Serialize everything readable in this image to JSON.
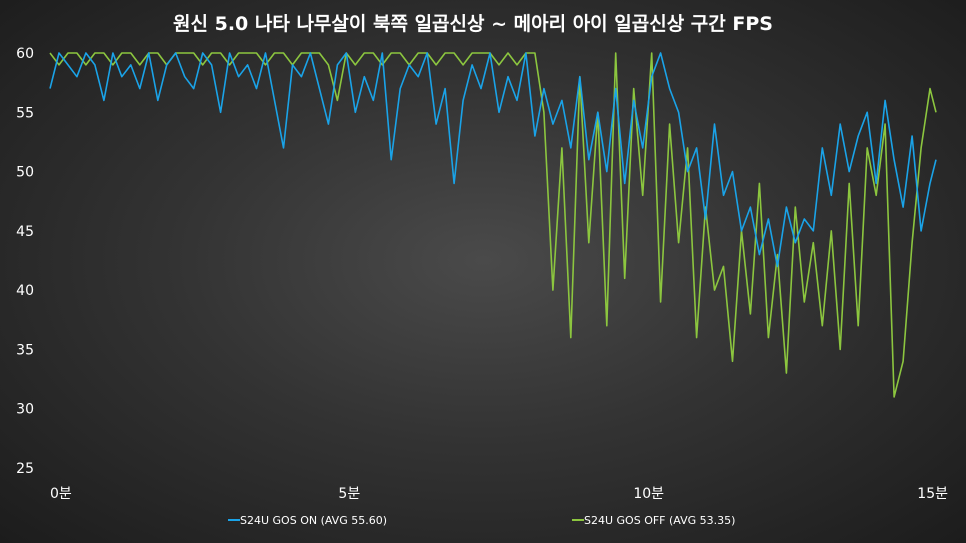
{
  "chart_data": {
    "type": "line",
    "title": "원신 5.0 나타 나무살이 북쪽 일곱신상 ~ 메아리 아이 일곱신상 구간 FPS",
    "xlabel": "",
    "ylabel": "",
    "xlim": [
      0,
      15
    ],
    "ylim": [
      25,
      60
    ],
    "x_ticks": [
      0,
      5,
      10,
      15
    ],
    "x_tick_labels": [
      "0분",
      "5분",
      "10분",
      "15분"
    ],
    "y_ticks": [
      25,
      30,
      35,
      40,
      45,
      50,
      55,
      60
    ],
    "y_tick_labels": [
      "25",
      "30",
      "35",
      "40",
      "45",
      "50",
      "55",
      "60"
    ],
    "grid": false,
    "legend_position": "bottom",
    "series": [
      {
        "name": "S24U GOS ON (AVG 55.60)",
        "color": "#1aa3e8",
        "x": [
          0,
          0.15,
          0.3,
          0.45,
          0.6,
          0.75,
          0.9,
          1.05,
          1.2,
          1.35,
          1.5,
          1.65,
          1.8,
          1.95,
          2.1,
          2.25,
          2.4,
          2.55,
          2.7,
          2.85,
          3.0,
          3.15,
          3.3,
          3.45,
          3.6,
          3.75,
          3.9,
          4.05,
          4.2,
          4.35,
          4.5,
          4.65,
          4.8,
          4.95,
          5.1,
          5.25,
          5.4,
          5.55,
          5.7,
          5.85,
          6.0,
          6.15,
          6.3,
          6.45,
          6.6,
          6.75,
          6.9,
          7.05,
          7.2,
          7.35,
          7.5,
          7.65,
          7.8,
          7.95,
          8.1,
          8.25,
          8.4,
          8.55,
          8.7,
          8.85,
          9.0,
          9.15,
          9.3,
          9.45,
          9.6,
          9.75,
          9.9,
          10.05,
          10.2,
          10.35,
          10.5,
          10.65,
          10.8,
          10.95,
          11.1,
          11.25,
          11.4,
          11.55,
          11.7,
          11.85,
          12.0,
          12.15,
          12.3,
          12.45,
          12.6,
          12.75,
          12.9,
          13.05,
          13.2,
          13.35,
          13.5,
          13.65,
          13.8,
          13.95,
          14.1,
          14.25,
          14.4,
          14.55,
          14.7,
          14.8
        ],
        "values": [
          57,
          60,
          59,
          58,
          60,
          59,
          56,
          60,
          58,
          59,
          57,
          60,
          56,
          59,
          60,
          58,
          57,
          60,
          59,
          55,
          60,
          58,
          59,
          57,
          60,
          56,
          52,
          59,
          58,
          60,
          57,
          54,
          59,
          60,
          55,
          58,
          56,
          60,
          51,
          57,
          59,
          58,
          60,
          54,
          57,
          49,
          56,
          59,
          57,
          60,
          55,
          58,
          56,
          60,
          53,
          57,
          54,
          56,
          52,
          58,
          51,
          55,
          50,
          57,
          49,
          56,
          52,
          58,
          60,
          57,
          55,
          50,
          52,
          46,
          54,
          48,
          50,
          45,
          47,
          43,
          46,
          42,
          47,
          44,
          46,
          45,
          52,
          48,
          54,
          50,
          53,
          55,
          49,
          56,
          51,
          47,
          53,
          45,
          49,
          51
        ]
      },
      {
        "name": "S24U GOS OFF (AVG 53.35)",
        "color": "#8cc63f",
        "x": [
          0,
          0.15,
          0.3,
          0.45,
          0.6,
          0.75,
          0.9,
          1.05,
          1.2,
          1.35,
          1.5,
          1.65,
          1.8,
          1.95,
          2.1,
          2.25,
          2.4,
          2.55,
          2.7,
          2.85,
          3.0,
          3.15,
          3.3,
          3.45,
          3.6,
          3.75,
          3.9,
          4.05,
          4.2,
          4.35,
          4.5,
          4.65,
          4.8,
          4.95,
          5.1,
          5.25,
          5.4,
          5.55,
          5.7,
          5.85,
          6.0,
          6.15,
          6.3,
          6.45,
          6.6,
          6.75,
          6.9,
          7.05,
          7.2,
          7.35,
          7.5,
          7.65,
          7.8,
          7.95,
          8.1,
          8.25,
          8.4,
          8.55,
          8.7,
          8.85,
          9.0,
          9.15,
          9.3,
          9.45,
          9.6,
          9.75,
          9.9,
          10.05,
          10.2,
          10.35,
          10.5,
          10.65,
          10.8,
          10.95,
          11.1,
          11.25,
          11.4,
          11.55,
          11.7,
          11.85,
          12.0,
          12.15,
          12.3,
          12.45,
          12.6,
          12.75,
          12.9,
          13.05,
          13.2,
          13.35,
          13.5,
          13.65,
          13.8,
          13.95,
          14.1,
          14.25,
          14.4,
          14.55,
          14.7,
          14.8
        ],
        "values": [
          60,
          59,
          60,
          60,
          59,
          60,
          60,
          59,
          60,
          60,
          59,
          60,
          60,
          59,
          60,
          60,
          60,
          59,
          60,
          60,
          59,
          60,
          60,
          60,
          59,
          60,
          60,
          59,
          60,
          60,
          60,
          59,
          56,
          60,
          59,
          60,
          60,
          59,
          60,
          60,
          59,
          60,
          60,
          59,
          60,
          60,
          59,
          60,
          60,
          60,
          59,
          60,
          59,
          60,
          60,
          55,
          40,
          52,
          36,
          58,
          44,
          55,
          37,
          60,
          41,
          57,
          48,
          60,
          39,
          54,
          44,
          52,
          36,
          47,
          40,
          42,
          34,
          45,
          38,
          49,
          36,
          43,
          33,
          47,
          39,
          44,
          37,
          45,
          35,
          49,
          37,
          52,
          48,
          54,
          31,
          34,
          44,
          52,
          57,
          55
        ]
      }
    ]
  }
}
